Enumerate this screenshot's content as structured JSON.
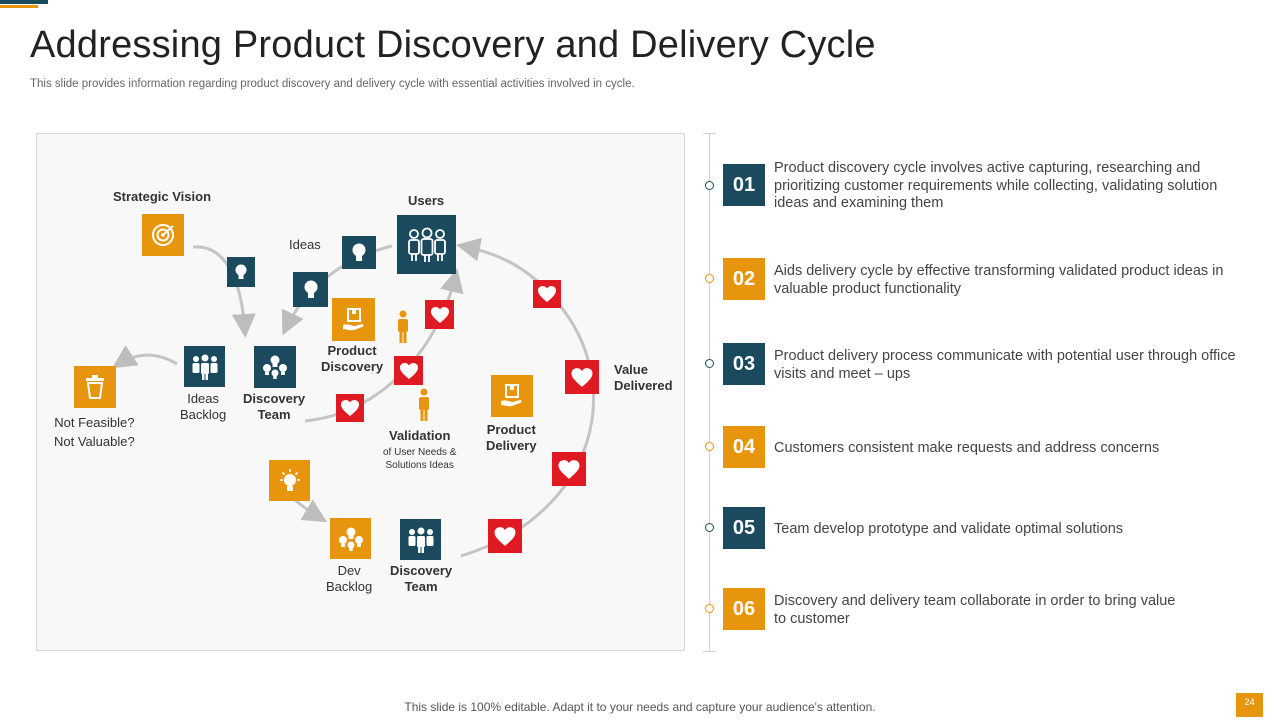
{
  "title": "Addressing Product Discovery and Delivery Cycle",
  "subtitle": "This slide provides information regarding product discovery and delivery cycle with essential activities involved in cycle.",
  "diagram": {
    "strategic_vision": "Strategic Vision",
    "users": "Users",
    "ideas": "Ideas",
    "product_discovery": "Product\nDiscovery",
    "not_feasible": "Not Feasible?\nNot Valuable?",
    "ideas_backlog": "Ideas\nBacklog",
    "discovery_team": "Discovery\nTeam",
    "validation": "Validation",
    "validation_sub": "of User Needs &\nSolutions Ideas",
    "product_delivery": "Product\nDelivery",
    "value_delivered": "Value\nDelivered",
    "dev_backlog": "Dev\nBacklog",
    "discovery_team_bottom": "Discovery\nTeam"
  },
  "items": [
    {
      "number": "01",
      "color": "#1b4a5e",
      "text": "Product discovery cycle involves active capturing, researching and prioritizing customer requirements while collecting, validating solution ideas and examining them"
    },
    {
      "number": "02",
      "color": "#e8950e",
      "text": "Aids delivery cycle by effective transforming validated product ideas in valuable product functionality"
    },
    {
      "number": "03",
      "color": "#1b4a5e",
      "text": "Product delivery process communicate with potential user through office visits and meet – ups"
    },
    {
      "number": "04",
      "color": "#e8950e",
      "text": "Customers consistent make requests and address concerns"
    },
    {
      "number": "05",
      "color": "#1b4a5e",
      "text": "Team develop prototype and validate optimal solutions"
    },
    {
      "number": "06",
      "color": "#e8950e",
      "text": "Discovery and delivery team collaborate in order to bring value to customer"
    }
  ],
  "footer": "This slide is 100% editable. Adapt it to your needs and capture your audience's attention.",
  "page_number": "24",
  "colors": {
    "teal": "#1b4a5e",
    "orange": "#e8950e",
    "red": "#e01a22"
  },
  "icons": [
    "target-icon",
    "users-group-icon",
    "lightbulb-icon",
    "box-hand-icon",
    "person-icon",
    "heart-icon",
    "trash-icon",
    "team-icon",
    "team-ideas-icon"
  ]
}
